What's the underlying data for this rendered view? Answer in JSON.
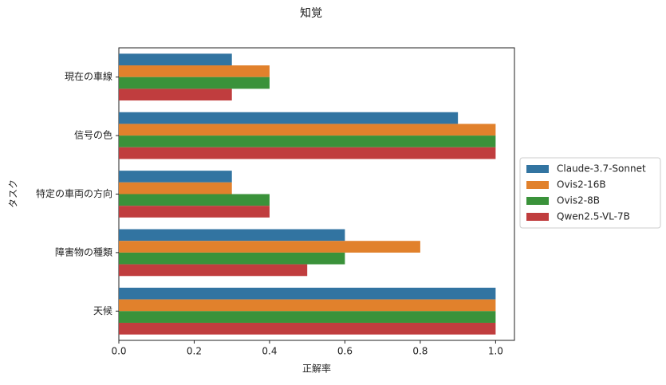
{
  "chart_data": {
    "type": "barh",
    "title": "知覚",
    "x_label": "正解率",
    "y_label": "タスク",
    "categories": [
      "現在の車線",
      "信号の色",
      "特定の車両の方向",
      "障害物の種類",
      "天候"
    ],
    "series": [
      {
        "name": "Claude-3.7-Sonnet",
        "color": "#3274a1",
        "values": [
          0.3,
          0.9,
          0.3,
          0.6,
          1.0
        ]
      },
      {
        "name": "Ovis2-16B",
        "color": "#e1812c",
        "values": [
          0.4,
          1.0,
          0.3,
          0.8,
          1.0
        ]
      },
      {
        "name": "Ovis2-8B",
        "color": "#3a923a",
        "values": [
          0.4,
          1.0,
          0.4,
          0.6,
          1.0
        ]
      },
      {
        "name": "Qwen2.5-VL-7B",
        "color": "#c03d3e",
        "values": [
          0.3,
          1.0,
          0.4,
          0.5,
          1.0
        ]
      }
    ],
    "xlim": [
      0,
      1.05
    ],
    "xticks": [
      {
        "value": 0,
        "label": "0.0"
      },
      0.2,
      0.4,
      0.6,
      0.8,
      {
        "value": 1,
        "label": "1.0"
      }
    ],
    "legend": "right"
  }
}
